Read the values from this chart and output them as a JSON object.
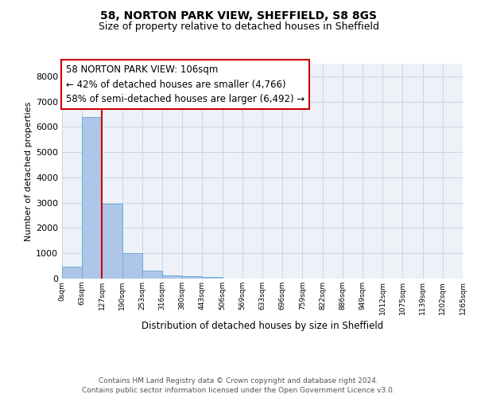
{
  "title_line1": "58, NORTON PARK VIEW, SHEFFIELD, S8 8GS",
  "title_line2": "Size of property relative to detached houses in Sheffield",
  "xlabel": "Distribution of detached houses by size in Sheffield",
  "ylabel": "Number of detached properties",
  "bar_values": [
    480,
    6380,
    2950,
    1000,
    330,
    130,
    80,
    55,
    0,
    0,
    0,
    0,
    0,
    0,
    0,
    0,
    0,
    0,
    0,
    0
  ],
  "bar_labels": [
    "0sqm",
    "63sqm",
    "127sqm",
    "190sqm",
    "253sqm",
    "316sqm",
    "380sqm",
    "443sqm",
    "506sqm",
    "569sqm",
    "633sqm",
    "696sqm",
    "759sqm",
    "822sqm",
    "886sqm",
    "949sqm",
    "1012sqm",
    "1075sqm",
    "1139sqm",
    "1202sqm",
    "1265sqm"
  ],
  "bar_color": "#aec6e8",
  "bar_edge_color": "#6aaed6",
  "reference_line_x": 2,
  "reference_line_color": "#cc0000",
  "annotation_box_text": "58 NORTON PARK VIEW: 106sqm\n← 42% of detached houses are smaller (4,766)\n58% of semi-detached houses are larger (6,492) →",
  "annotation_box_edgecolor": "#cc0000",
  "annotation_box_facecolor": "#ffffff",
  "ylim": [
    0,
    8500
  ],
  "yticks": [
    0,
    1000,
    2000,
    3000,
    4000,
    5000,
    6000,
    7000,
    8000
  ],
  "grid_color": "#c8d8e8",
  "background_color": "#eef2f8",
  "footer_line1": "Contains HM Land Registry data © Crown copyright and database right 2024.",
  "footer_line2": "Contains public sector information licensed under the Open Government Licence v3.0.",
  "title_fontsize": 10,
  "subtitle_fontsize": 9,
  "annotation_fontsize": 8.5,
  "footer_fontsize": 6.5
}
